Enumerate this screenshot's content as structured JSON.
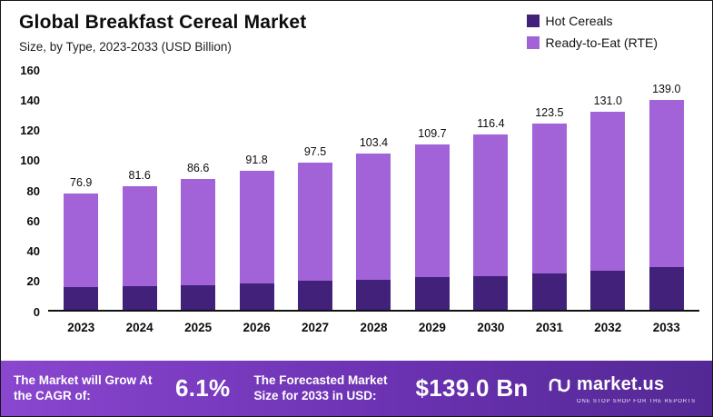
{
  "header": {
    "title": "Global Breakfast Cereal Market",
    "subtitle": "Size, by Type, 2023-2033 (USD Billion)"
  },
  "legend": [
    {
      "label": "Hot Cereals",
      "color": "#42217b"
    },
    {
      "label": "Ready-to-Eat (RTE)",
      "color": "#a263d8"
    }
  ],
  "chart_data": {
    "type": "bar",
    "stacked": true,
    "title": "Global Breakfast Cereal Market",
    "subtitle": "Size, by Type, 2023-2033 (USD Billion)",
    "categories": [
      "2023",
      "2024",
      "2025",
      "2026",
      "2027",
      "2028",
      "2029",
      "2030",
      "2031",
      "2032",
      "2033"
    ],
    "series": [
      {
        "name": "Hot Cereals",
        "values": [
          15,
          15.5,
          16.5,
          17.5,
          19,
          20,
          21.5,
          22.5,
          24,
          26,
          28
        ]
      },
      {
        "name": "Ready-to-Eat (RTE)",
        "values": [
          61.9,
          66.1,
          70.1,
          74.3,
          78.5,
          83.4,
          88.2,
          93.9,
          99.5,
          105,
          111
        ]
      }
    ],
    "totals": [
      76.9,
      81.6,
      86.6,
      91.8,
      97.5,
      103.4,
      109.7,
      116.4,
      123.5,
      131.0,
      139.0
    ],
    "totals_labels": [
      "76.9",
      "81.6",
      "86.6",
      "91.8",
      "97.5",
      "103.4",
      "109.7",
      "116.4",
      "123.5",
      "131.0",
      "139.0"
    ],
    "xlabel": "",
    "ylabel": "",
    "ylim": [
      0,
      160
    ],
    "yticks": [
      0,
      20,
      40,
      60,
      80,
      100,
      120,
      140,
      160
    ],
    "grid": false,
    "legend_position": "top-right"
  },
  "footer": {
    "cagr_label": "The Market will Grow At the CAGR of:",
    "cagr_value": "6.1%",
    "forecast_label": "The Forecasted Market Size for 2033 in USD:",
    "forecast_value": "$139.0 Bn",
    "brand": "market.us",
    "tagline": "ONE STOP SHOP FOR THE REPORTS"
  }
}
